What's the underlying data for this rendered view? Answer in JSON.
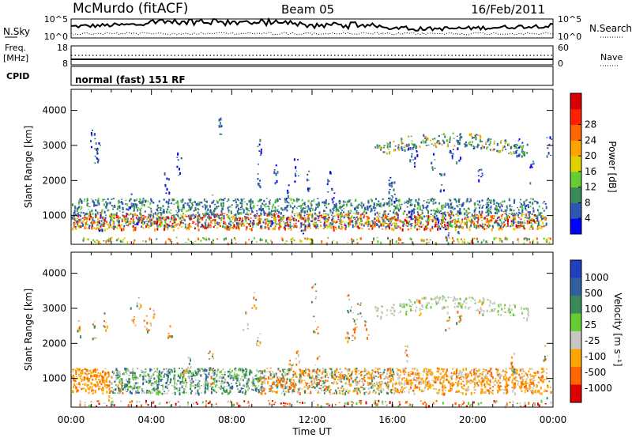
{
  "header": {
    "station": "McMurdo (fitACF)",
    "beam": "Beam 05",
    "date": "16/Feb/2011"
  },
  "noise_panel": {
    "left_label": "N.Sky",
    "right_label": "N.Search",
    "ticks_left": [
      "10^5",
      "10^0"
    ],
    "ticks_right": [
      "10^5",
      "10^0"
    ]
  },
  "freq_panel": {
    "left_label_1": "Freq.",
    "left_label_2": "[MHz]",
    "right_label": "Nave",
    "ticks_left": [
      "18",
      "8"
    ],
    "ticks_right": [
      "60",
      "0"
    ]
  },
  "cpid_panel": {
    "label": "CPID",
    "text": "normal (fast) 151 RF"
  },
  "x_axis": {
    "label": "Time UT",
    "ticks": [
      "00:00",
      "04:00",
      "08:00",
      "12:00",
      "16:00",
      "20:00",
      "00:00"
    ]
  },
  "chart_data": [
    {
      "type": "heatmap",
      "ylabel": "Slant Range [km]",
      "y_ticks": [
        "1000",
        "2000",
        "3000",
        "4000"
      ],
      "ylim": [
        180,
        4600
      ],
      "colorbar_label": "Power [dB]",
      "colorbar_ticks": [
        "4",
        "8",
        "12",
        "16",
        "20",
        "24",
        "28"
      ],
      "colors": [
        "#0000ff",
        "#2d57b5",
        "#3a8a5a",
        "#66cc33",
        "#e0d000",
        "#ffa500",
        "#ff6600",
        "#ff2000",
        "#d80000"
      ]
    },
    {
      "type": "heatmap",
      "ylabel": "Slant Range [km]",
      "y_ticks": [
        "1000",
        "2000",
        "3000",
        "4000"
      ],
      "ylim": [
        180,
        4600
      ],
      "colorbar_label": "Velocity [m s⁻¹]",
      "colorbar_ticks": [
        "1000",
        "500",
        "100",
        "25",
        "-25",
        "-100",
        "-500",
        "-1000"
      ],
      "colors": [
        "#2040c0",
        "#3060a0",
        "#3a8a5a",
        "#66cc33",
        "#c8c8c0",
        "#ffa500",
        "#ff6600",
        "#e00000"
      ]
    }
  ]
}
